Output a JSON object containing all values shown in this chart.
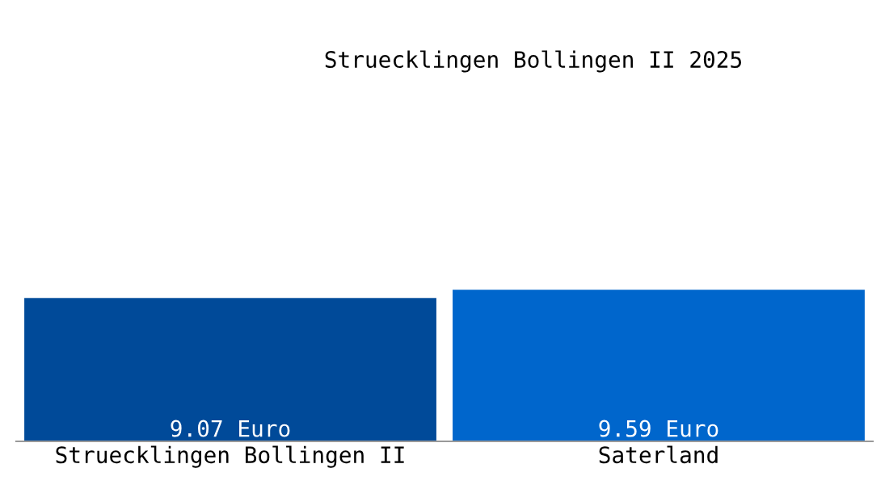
{
  "chart_data": {
    "type": "bar",
    "title": "Struecklingen Bollingen II 2025",
    "categories": [
      "Struecklingen Bollingen II",
      "Saterland"
    ],
    "values": [
      9.07,
      9.59
    ],
    "colors": [
      "#004a99",
      "#0066cc"
    ],
    "value_labels": [
      "9.07 Euro",
      "9.59 Euro"
    ]
  }
}
